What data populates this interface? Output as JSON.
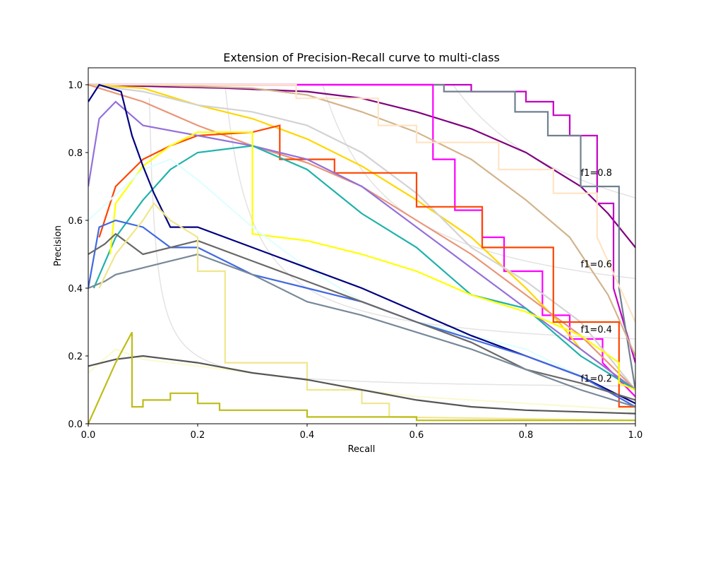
{
  "chart_data": {
    "type": "line",
    "title": "Extension of Precision-Recall curve to multi-class",
    "xlabel": "Recall",
    "ylabel": "Precision",
    "xlim": [
      0.0,
      1.0
    ],
    "ylim": [
      0.0,
      1.05
    ],
    "x_ticks": [
      "0.0",
      "0.2",
      "0.4",
      "0.6",
      "0.8",
      "1.0"
    ],
    "y_ticks": [
      "0.0",
      "0.2",
      "0.4",
      "0.6",
      "0.8",
      "1.0"
    ],
    "grid": false,
    "iso_f1": [
      {
        "f1": 0.2,
        "label": "f1=0.2",
        "color": "#e3e3e3"
      },
      {
        "f1": 0.4,
        "label": "f1=0.4",
        "color": "#e3e3e3"
      },
      {
        "f1": 0.6,
        "label": "f1=0.6",
        "color": "#e3e3e3"
      },
      {
        "f1": 0.8,
        "label": "f1=0.8",
        "color": "#e3e3e3"
      }
    ],
    "series": [
      {
        "color": "#800080",
        "x": [
          0,
          0.25,
          0.4,
          0.5,
          0.6,
          0.7,
          0.8,
          0.9,
          0.95,
          1.0
        ],
        "y": [
          1,
          0.99,
          0.98,
          0.96,
          0.92,
          0.87,
          0.8,
          0.7,
          0.62,
          0.52
        ]
      },
      {
        "color": "#c400c4",
        "x": [
          0,
          0.7,
          0.7,
          0.8,
          0.8,
          0.85,
          0.85,
          0.88,
          0.88,
          0.93,
          0.93,
          0.96,
          0.96,
          1.0
        ],
        "y": [
          1,
          1,
          0.98,
          0.98,
          0.95,
          0.95,
          0.91,
          0.91,
          0.85,
          0.85,
          0.65,
          0.65,
          0.4,
          0.18
        ]
      },
      {
        "color": "#708090",
        "x": [
          0,
          0.65,
          0.65,
          0.78,
          0.78,
          0.84,
          0.84,
          0.9,
          0.9,
          0.97,
          0.97,
          1.0
        ],
        "y": [
          1,
          1,
          0.98,
          0.98,
          0.92,
          0.92,
          0.85,
          0.85,
          0.7,
          0.7,
          0.4,
          0.1
        ]
      },
      {
        "color": "#ff00ff",
        "x": [
          0,
          0.63,
          0.63,
          0.67,
          0.67,
          0.72,
          0.72,
          0.76,
          0.76,
          0.83,
          0.83,
          0.88,
          0.88,
          0.94,
          0.94,
          1.0
        ],
        "y": [
          1,
          1,
          0.78,
          0.78,
          0.63,
          0.63,
          0.55,
          0.55,
          0.45,
          0.45,
          0.32,
          0.32,
          0.25,
          0.25,
          0.18,
          0.08
        ]
      },
      {
        "color": "#d2b48c",
        "x": [
          0,
          0.1,
          0.3,
          0.4,
          0.5,
          0.6,
          0.7,
          0.8,
          0.88,
          0.95,
          1.0
        ],
        "y": [
          1,
          1,
          0.99,
          0.97,
          0.92,
          0.86,
          0.78,
          0.66,
          0.55,
          0.38,
          0.2
        ]
      },
      {
        "color": "#ffe4c4",
        "x": [
          0,
          0.38,
          0.38,
          0.53,
          0.53,
          0.6,
          0.6,
          0.75,
          0.75,
          0.85,
          0.85,
          0.93,
          0.93,
          1.0
        ],
        "y": [
          1,
          1,
          0.96,
          0.96,
          0.88,
          0.88,
          0.83,
          0.83,
          0.75,
          0.75,
          0.68,
          0.68,
          0.55,
          0.3
        ]
      },
      {
        "color": "#ffd700",
        "x": [
          0,
          0.1,
          0.2,
          0.3,
          0.4,
          0.5,
          0.6,
          0.7,
          0.8,
          0.86,
          0.9,
          1.0
        ],
        "y": [
          1,
          0.99,
          0.94,
          0.9,
          0.84,
          0.76,
          0.66,
          0.55,
          0.4,
          0.3,
          0.22,
          0.1
        ]
      },
      {
        "color": "#d3d3d3",
        "x": [
          0,
          0.1,
          0.2,
          0.3,
          0.4,
          0.5,
          0.6,
          0.7,
          0.8,
          0.9,
          1.0
        ],
        "y": [
          1,
          0.98,
          0.94,
          0.92,
          0.88,
          0.8,
          0.68,
          0.52,
          0.42,
          0.3,
          0.1
        ]
      },
      {
        "color": "#e9967a",
        "x": [
          0,
          0.1,
          0.2,
          0.3,
          0.4,
          0.5,
          0.6,
          0.7,
          0.8,
          0.9,
          1.0
        ],
        "y": [
          1,
          0.95,
          0.88,
          0.82,
          0.77,
          0.7,
          0.6,
          0.5,
          0.38,
          0.26,
          0.1
        ]
      },
      {
        "color": "#ff4500",
        "x": [
          0.02,
          0.05,
          0.1,
          0.15,
          0.2,
          0.3,
          0.35,
          0.35,
          0.45,
          0.45,
          0.6,
          0.6,
          0.72,
          0.72,
          0.85,
          0.85,
          0.97,
          0.97,
          1.0
        ],
        "y": [
          0.55,
          0.7,
          0.78,
          0.82,
          0.85,
          0.86,
          0.88,
          0.78,
          0.78,
          0.74,
          0.74,
          0.64,
          0.64,
          0.52,
          0.52,
          0.3,
          0.3,
          0.05,
          0.05
        ]
      },
      {
        "color": "#9370db",
        "x": [
          0,
          0.02,
          0.05,
          0.1,
          0.2,
          0.3,
          0.4,
          0.5,
          0.6,
          0.7,
          0.8,
          0.9,
          1.0
        ],
        "y": [
          0.7,
          0.9,
          0.95,
          0.88,
          0.85,
          0.82,
          0.78,
          0.7,
          0.58,
          0.46,
          0.34,
          0.22,
          0.1
        ]
      },
      {
        "color": "#20b2aa",
        "x": [
          0.01,
          0.05,
          0.1,
          0.15,
          0.2,
          0.3,
          0.4,
          0.5,
          0.6,
          0.7,
          0.8,
          0.9,
          1.0
        ],
        "y": [
          0.4,
          0.55,
          0.66,
          0.75,
          0.8,
          0.82,
          0.75,
          0.62,
          0.52,
          0.38,
          0.34,
          0.2,
          0.1
        ]
      },
      {
        "color": "#ffff00",
        "x": [
          0.04,
          0.05,
          0.1,
          0.15,
          0.2,
          0.3,
          0.3,
          0.4,
          0.5,
          0.6,
          0.7,
          0.8,
          0.9,
          0.97,
          0.97,
          1.0
        ],
        "y": [
          0.5,
          0.65,
          0.76,
          0.82,
          0.86,
          0.86,
          0.56,
          0.54,
          0.5,
          0.45,
          0.38,
          0.33,
          0.26,
          0.18,
          0.12,
          0.1
        ]
      },
      {
        "color": "#e0ffff",
        "x": [
          0,
          0.1,
          0.15,
          0.2,
          0.3,
          0.4,
          0.5,
          0.6,
          0.7,
          0.8,
          0.9,
          1.0
        ],
        "y": [
          0.6,
          0.75,
          0.78,
          0.72,
          0.58,
          0.46,
          0.36,
          0.3,
          0.26,
          0.22,
          0.14,
          0.06
        ]
      },
      {
        "color": "#000080",
        "x": [
          0,
          0.02,
          0.06,
          0.08,
          0.1,
          0.12,
          0.15,
          0.2,
          0.3,
          0.4,
          0.5,
          0.6,
          0.7,
          0.8,
          0.9,
          1.0
        ],
        "y": [
          0.95,
          1,
          0.98,
          0.85,
          0.76,
          0.68,
          0.58,
          0.58,
          0.52,
          0.46,
          0.4,
          0.33,
          0.26,
          0.2,
          0.14,
          0.06
        ]
      },
      {
        "color": "#4169e1",
        "x": [
          0,
          0.02,
          0.05,
          0.1,
          0.15,
          0.2,
          0.3,
          0.4,
          0.5,
          0.6,
          0.7,
          0.8,
          0.9,
          1.0
        ],
        "y": [
          0.4,
          0.58,
          0.6,
          0.58,
          0.52,
          0.52,
          0.44,
          0.4,
          0.36,
          0.3,
          0.25,
          0.2,
          0.14,
          0.05
        ]
      },
      {
        "color": "#696969",
        "x": [
          0,
          0.03,
          0.05,
          0.1,
          0.15,
          0.2,
          0.3,
          0.4,
          0.5,
          0.6,
          0.7,
          0.8,
          0.9,
          1.0
        ],
        "y": [
          0.5,
          0.53,
          0.56,
          0.5,
          0.52,
          0.54,
          0.48,
          0.42,
          0.36,
          0.3,
          0.24,
          0.16,
          0.12,
          0.07
        ]
      },
      {
        "color": "#778899",
        "x": [
          0,
          0.03,
          0.05,
          0.1,
          0.15,
          0.2,
          0.3,
          0.4,
          0.5,
          0.6,
          0.7,
          0.8,
          0.9,
          1.0
        ],
        "y": [
          0.4,
          0.42,
          0.44,
          0.46,
          0.48,
          0.5,
          0.44,
          0.36,
          0.32,
          0.27,
          0.22,
          0.16,
          0.1,
          0.05
        ]
      },
      {
        "color": "#f0e68c",
        "x": [
          0.02,
          0.05,
          0.1,
          0.12,
          0.15,
          0.2,
          0.2,
          0.25,
          0.25,
          0.4,
          0.4,
          0.5,
          0.5,
          0.55,
          0.55,
          1.0
        ],
        "y": [
          0.4,
          0.5,
          0.6,
          0.65,
          0.6,
          0.55,
          0.45,
          0.45,
          0.18,
          0.18,
          0.1,
          0.1,
          0.06,
          0.06,
          0.02,
          0.01
        ]
      },
      {
        "color": "#fafad2",
        "x": [
          0,
          0.05,
          0.1,
          0.2,
          0.3,
          0.4,
          0.5,
          0.6,
          0.7,
          0.8,
          0.9,
          1.0
        ],
        "y": [
          0.15,
          0.22,
          0.19,
          0.17,
          0.15,
          0.13,
          0.1,
          0.08,
          0.07,
          0.06,
          0.05,
          0.04
        ]
      },
      {
        "color": "#555555",
        "x": [
          0,
          0.05,
          0.1,
          0.15,
          0.2,
          0.3,
          0.4,
          0.5,
          0.6,
          0.7,
          0.8,
          0.9,
          1.0
        ],
        "y": [
          0.17,
          0.19,
          0.2,
          0.19,
          0.18,
          0.15,
          0.13,
          0.1,
          0.07,
          0.05,
          0.04,
          0.035,
          0.03
        ]
      },
      {
        "color": "#bdbd18",
        "x": [
          0,
          0.05,
          0.08,
          0.08,
          0.1,
          0.1,
          0.15,
          0.15,
          0.2,
          0.2,
          0.24,
          0.24,
          0.4,
          0.4,
          0.6,
          0.6,
          1.0
        ],
        "y": [
          0,
          0.18,
          0.27,
          0.05,
          0.05,
          0.07,
          0.07,
          0.09,
          0.09,
          0.06,
          0.06,
          0.04,
          0.04,
          0.02,
          0.02,
          0.01,
          0.01
        ]
      }
    ]
  }
}
